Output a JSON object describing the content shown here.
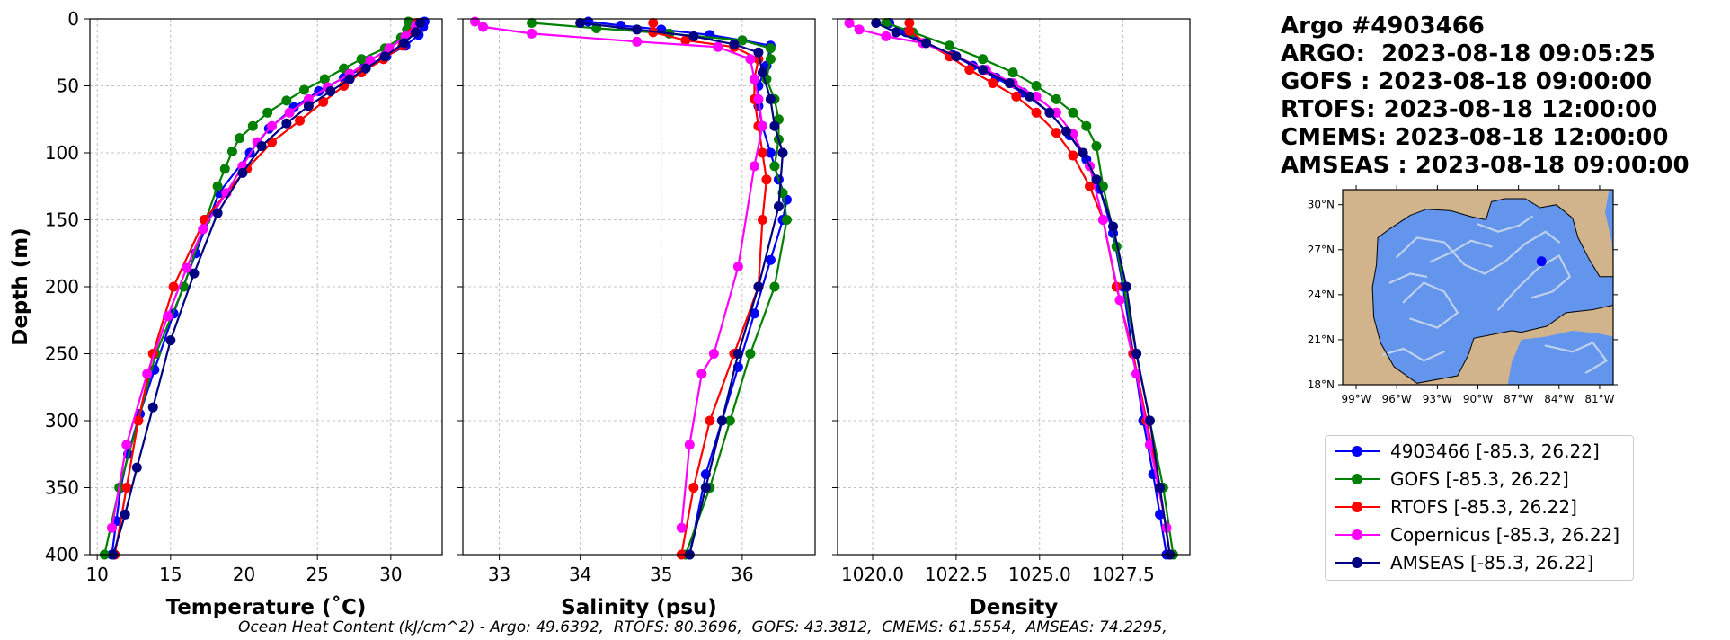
{
  "info": {
    "lines": [
      "Argo #4903466",
      "ARGO:  2023-08-18 09:05:25",
      "GOFS : 2023-08-18 09:00:00",
      "RTOFS: 2023-08-18 12:00:00",
      "CMEMS: 2023-08-18 12:00:00",
      "AMSEAS : 2023-08-18 09:00:00"
    ]
  },
  "footer": "Ocean Heat Content (kJ/cm^2) - Argo: 49.6392,  RTOFS: 80.3696,  GOFS: 43.3812,  CMEMS: 61.5554,  AMSEAS: 74.2295,",
  "legend": {
    "items": [
      {
        "label": "4903466 [-85.3, 26.22]",
        "color": "#0000ff"
      },
      {
        "label": "GOFS [-85.3, 26.22]",
        "color": "#008000"
      },
      {
        "label": "RTOFS [-85.3, 26.22]",
        "color": "#ff0000"
      },
      {
        "label": "Copernicus [-85.3, 26.22]",
        "color": "#ff00ff"
      },
      {
        "label": "AMSEAS [-85.3, 26.22]",
        "color": "#000080"
      }
    ]
  },
  "map": {
    "lat_labels": [
      "30°N",
      "27°N",
      "24°N",
      "21°N",
      "18°N"
    ],
    "lon_labels": [
      "99°W",
      "96°W",
      "93°W",
      "90°W",
      "87°W",
      "84°W",
      "81°W"
    ],
    "lat_values": [
      30,
      27,
      24,
      21,
      18
    ],
    "lon_values": [
      -99,
      -96,
      -93,
      -90,
      -87,
      -84,
      -81
    ],
    "extent": {
      "lon": [
        -100,
        -80
      ],
      "lat": [
        18,
        31
      ]
    },
    "float_position": {
      "lon": -85.3,
      "lat": 26.22,
      "color": "#0000ff"
    },
    "land_color": "#d2b48c",
    "ocean_color": "#6495ed"
  },
  "chart_data": [
    {
      "type": "line",
      "xlabel": "Temperature (˚C)",
      "ylabel": "Depth (m)",
      "xlim": [
        9.5,
        33.5
      ],
      "ylim": [
        400,
        0
      ],
      "xticks": [
        10,
        15,
        20,
        25,
        30
      ],
      "yticks": [
        0,
        50,
        100,
        150,
        200,
        250,
        300,
        350,
        400
      ],
      "grid": true,
      "series": [
        {
          "name": "4903466 [-85.3, 26.22]",
          "color": "#0000ff",
          "x": [
            32.3,
            32.2,
            31.9,
            31.0,
            29.7,
            28.2,
            26.8,
            25.1,
            23.4,
            21.7,
            20.4,
            18.3,
            16.7,
            15.2,
            13.9,
            12.9,
            12.1,
            11.6,
            11.3,
            11.0
          ],
          "y": [
            2,
            6,
            12,
            20,
            28,
            36,
            44,
            54,
            66,
            82,
            100,
            130,
            175,
            220,
            262,
            295,
            325,
            350,
            375,
            400
          ]
        },
        {
          "name": "GOFS [-85.3, 26.22]",
          "color": "#008000",
          "x": [
            31.2,
            31.1,
            30.7,
            29.6,
            28.0,
            26.8,
            25.5,
            24.1,
            22.9,
            21.6,
            20.6,
            19.7,
            19.2,
            18.7,
            18.2,
            17.4,
            15.9,
            14.0,
            12.8,
            11.5,
            10.5
          ],
          "y": [
            2,
            8,
            14,
            22,
            30,
            37,
            45,
            53,
            61,
            70,
            80,
            89,
            99,
            112,
            125,
            150,
            200,
            250,
            300,
            350,
            400
          ]
        },
        {
          "name": "RTOFS [-85.3, 26.22]",
          "color": "#ff0000",
          "x": [
            31.8,
            31.5,
            30.8,
            29.5,
            28.0,
            26.8,
            25.4,
            23.8,
            21.9,
            20.2,
            18.8,
            17.3,
            15.2,
            13.8,
            12.8,
            12.0,
            11.2
          ],
          "y": [
            3,
            10,
            20,
            30,
            40,
            50,
            62,
            76,
            92,
            112,
            130,
            150,
            200,
            250,
            300,
            350,
            400
          ]
        },
        {
          "name": "Copernicus [-85.3, 26.22]",
          "color": "#ff00ff",
          "x": [
            31.7,
            31.0,
            29.9,
            28.6,
            27.2,
            25.7,
            24.4,
            23.1,
            21.9,
            20.9,
            19.9,
            18.8,
            17.2,
            16.1,
            14.8,
            13.4,
            12.0,
            11.0
          ],
          "y": [
            5,
            13,
            22,
            31,
            41,
            51,
            60,
            70,
            80,
            92,
            110,
            130,
            157,
            186,
            222,
            265,
            318,
            380
          ]
        },
        {
          "name": "AMSEAS [-85.3, 26.22]",
          "color": "#000080",
          "x": [
            32.0,
            31.7,
            30.9,
            29.6,
            28.3,
            27.2,
            25.9,
            24.4,
            22.9,
            21.2,
            19.9,
            18.2,
            16.6,
            15.0,
            13.8,
            12.7,
            11.9,
            11.1
          ],
          "y": [
            3,
            10,
            18,
            28,
            37,
            45,
            54,
            65,
            78,
            95,
            115,
            145,
            190,
            240,
            290,
            335,
            370,
            400
          ]
        }
      ]
    },
    {
      "type": "line",
      "xlabel": "Salinity (psu)",
      "ylabel": "",
      "xlim": [
        32.55,
        36.9
      ],
      "ylim": [
        400,
        0
      ],
      "xticks": [
        33,
        34,
        35,
        36
      ],
      "yticks": [
        0,
        50,
        100,
        150,
        200,
        250,
        300,
        350,
        400
      ],
      "grid": true,
      "series": [
        {
          "name": "4903466 [-85.3, 26.22]",
          "color": "#0000ff",
          "x": [
            34.1,
            34.5,
            35.0,
            35.6,
            36.0,
            36.35,
            36.3,
            36.2,
            36.2,
            36.25,
            36.35,
            36.45,
            36.55,
            36.5,
            36.35,
            36.15,
            35.95,
            35.75,
            35.55,
            35.35
          ],
          "y": [
            2,
            5,
            8,
            12,
            16,
            20,
            35,
            50,
            65,
            80,
            100,
            120,
            135,
            150,
            180,
            220,
            260,
            300,
            340,
            400
          ]
        },
        {
          "name": "GOFS [-85.3, 26.22]",
          "color": "#008000",
          "x": [
            33.4,
            34.2,
            35.1,
            36.0,
            36.35,
            36.35,
            36.3,
            36.4,
            36.45,
            36.45,
            36.4,
            36.5,
            36.55,
            36.4,
            36.1,
            35.85,
            35.6,
            35.3
          ],
          "y": [
            3,
            7,
            11,
            16,
            22,
            30,
            45,
            60,
            75,
            90,
            110,
            130,
            150,
            200,
            250,
            300,
            350,
            400
          ]
        },
        {
          "name": "RTOFS [-85.3, 26.22]",
          "color": "#ff0000",
          "x": [
            34.9,
            34.9,
            35.3,
            35.9,
            36.2,
            36.15,
            36.15,
            36.2,
            36.25,
            36.3,
            36.25,
            36.2,
            35.9,
            35.6,
            35.4,
            35.25
          ],
          "y": [
            3,
            10,
            16,
            21,
            30,
            45,
            60,
            80,
            100,
            120,
            150,
            200,
            250,
            300,
            350,
            400
          ]
        },
        {
          "name": "Copernicus [-85.3, 26.22]",
          "color": "#ff00ff",
          "x": [
            32.7,
            32.8,
            33.4,
            34.7,
            35.7,
            36.1,
            36.15,
            36.2,
            36.25,
            36.15,
            35.95,
            35.65,
            35.5,
            35.35,
            35.25
          ],
          "y": [
            2,
            6,
            11,
            17,
            21,
            30,
            45,
            60,
            80,
            110,
            185,
            250,
            265,
            318,
            380
          ]
        },
        {
          "name": "AMSEAS [-85.3, 26.22]",
          "color": "#000080",
          "x": [
            34.0,
            34.7,
            35.4,
            35.9,
            36.2,
            36.25,
            36.35,
            36.4,
            36.5,
            36.45,
            36.2,
            35.95,
            35.75,
            35.55,
            35.35
          ],
          "y": [
            3,
            8,
            13,
            19,
            25,
            40,
            60,
            80,
            100,
            140,
            200,
            250,
            300,
            350,
            400
          ]
        }
      ]
    },
    {
      "type": "line",
      "xlabel": "Density",
      "ylabel": "",
      "xlim": [
        1018.95,
        1029.5
      ],
      "ylim": [
        400,
        0
      ],
      "xticks": [
        1020.0,
        1022.5,
        1025.0,
        1027.5
      ],
      "yticks": [
        0,
        50,
        100,
        150,
        200,
        250,
        300,
        350,
        400
      ],
      "grid": true,
      "series": [
        {
          "name": "4903466 [-85.3, 26.22]",
          "color": "#0000ff",
          "x": [
            1020.5,
            1021.0,
            1021.6,
            1022.4,
            1023.0,
            1023.7,
            1024.5,
            1025.3,
            1025.9,
            1026.4,
            1026.8,
            1027.2,
            1027.5,
            1027.8,
            1028.1,
            1028.4,
            1028.6,
            1028.8
          ],
          "y": [
            3,
            10,
            18,
            27,
            35,
            44,
            55,
            70,
            87,
            105,
            127,
            160,
            200,
            250,
            300,
            340,
            370,
            400
          ]
        },
        {
          "name": "GOFS [-85.3, 26.22]",
          "color": "#008000",
          "x": [
            1020.4,
            1021.2,
            1022.3,
            1023.3,
            1024.2,
            1024.9,
            1025.5,
            1026.0,
            1026.4,
            1026.7,
            1026.9,
            1027.3,
            1027.9,
            1028.3,
            1028.7,
            1029.0
          ],
          "y": [
            3,
            10,
            20,
            30,
            40,
            50,
            60,
            70,
            80,
            95,
            125,
            170,
            250,
            300,
            350,
            400
          ]
        },
        {
          "name": "RTOFS [-85.3, 26.22]",
          "color": "#ff0000",
          "x": [
            1021.1,
            1021.1,
            1021.6,
            1022.3,
            1022.9,
            1023.6,
            1024.3,
            1024.9,
            1025.5,
            1026.0,
            1026.5,
            1026.9,
            1027.3,
            1027.8,
            1028.2,
            1028.6,
            1028.9
          ],
          "y": [
            3,
            9,
            18,
            28,
            38,
            48,
            58,
            70,
            85,
            102,
            125,
            150,
            200,
            250,
            300,
            350,
            400
          ]
        },
        {
          "name": "Copernicus [-85.3, 26.22]",
          "color": "#ff00ff",
          "x": [
            1019.3,
            1019.6,
            1020.4,
            1021.5,
            1022.5,
            1023.4,
            1024.2,
            1024.9,
            1025.5,
            1026.0,
            1026.5,
            1026.9,
            1027.4,
            1027.9,
            1028.3,
            1028.8
          ],
          "y": [
            3,
            8,
            13,
            18,
            28,
            38,
            48,
            58,
            70,
            86,
            110,
            150,
            210,
            265,
            318,
            380
          ]
        },
        {
          "name": "AMSEAS [-85.3, 26.22]",
          "color": "#000080",
          "x": [
            1020.1,
            1020.7,
            1021.6,
            1022.5,
            1023.3,
            1024.1,
            1024.7,
            1025.3,
            1025.8,
            1026.3,
            1026.7,
            1027.2,
            1027.6,
            1027.9,
            1028.3,
            1028.6,
            1028.9
          ],
          "y": [
            3,
            10,
            18,
            28,
            38,
            48,
            58,
            70,
            84,
            100,
            120,
            155,
            200,
            250,
            300,
            350,
            400
          ]
        }
      ]
    }
  ]
}
